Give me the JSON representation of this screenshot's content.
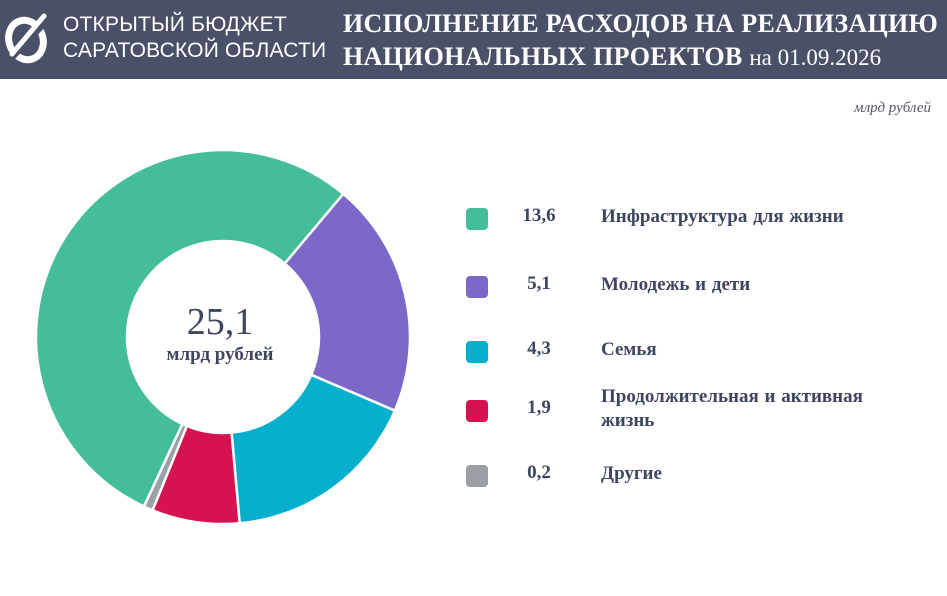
{
  "header": {
    "brand_line1": "ОТКРЫТЫЙ БЮДЖЕТ",
    "brand_line2": "САРАТОВСКОЙ ОБЛАСТИ",
    "title_line1": "ИСПОЛНЕНИЕ РАСХОДОВ НА РЕАЛИЗАЦИЮ",
    "title_line2": "НАЦИОНАЛЬНЫХ ПРОЕКТОВ",
    "title_date": "на 01.09.2026"
  },
  "units_label": "млрд рублей",
  "center": {
    "value": "25,1",
    "unit": "млрд рублей"
  },
  "chart_data": {
    "type": "pie",
    "total": 25.1,
    "categories": [
      "Инфраструктура для жизни",
      "Молодежь и дети",
      "Семья",
      "Продолжительная  и активная жизнь",
      "Другие"
    ],
    "values": [
      13.6,
      5.1,
      4.3,
      1.9,
      0.2
    ],
    "value_labels": [
      "13,6",
      "5,1",
      "4,3",
      "1,9",
      "0,2"
    ],
    "colors": [
      "#44bd9a",
      "#7b68c9",
      "#06afcc",
      "#d6134e",
      "#9aa0a6"
    ],
    "legend_position": "right",
    "chart_style": "donut"
  }
}
